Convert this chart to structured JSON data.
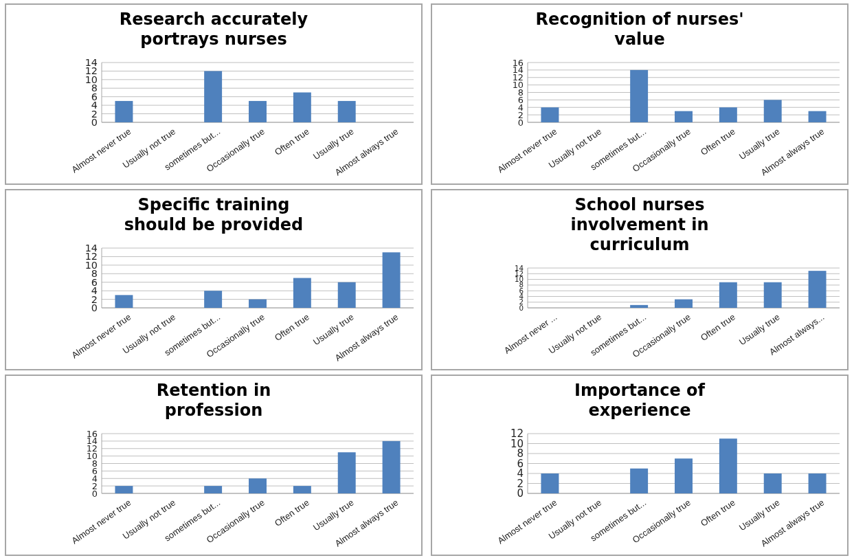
{
  "chart_data": [
    {
      "type": "bar",
      "title": "Research accurately portrays nurses",
      "categories": [
        "Almost never true",
        "Usually not true",
        "sometimes but...",
        "Occasionally true",
        "Often true",
        "Usually true",
        "Almost always true"
      ],
      "values": [
        5,
        0,
        12,
        5,
        7,
        5,
        0
      ],
      "color": "#4f81bd",
      "ylim": [
        0,
        14
      ],
      "yticks": [
        0,
        2,
        4,
        6,
        8,
        10,
        12,
        14
      ],
      "grid": "y"
    },
    {
      "type": "bar",
      "title": "Recognition of nurses' value",
      "categories": [
        "Almost never true",
        "Usually not true",
        "sometimes but...",
        "Occasionally true",
        "Often true",
        "Usually true",
        "Almost always true"
      ],
      "values": [
        4,
        0,
        14,
        3,
        4,
        6,
        3
      ],
      "color": "#4f81bd",
      "ylim": [
        0,
        16
      ],
      "yticks": [
        0,
        2,
        4,
        6,
        8,
        10,
        12,
        14,
        16
      ],
      "grid": "y"
    },
    {
      "type": "bar",
      "title": "Specific training should be provided",
      "categories": [
        "Almost never true",
        "Usually not true",
        "sometimes but...",
        "Occasionally true",
        "Often true",
        "Usually true",
        "Almost always true"
      ],
      "values": [
        3,
        0,
        4,
        2,
        7,
        6,
        13
      ],
      "color": "#4f81bd",
      "ylim": [
        0,
        14
      ],
      "yticks": [
        0,
        2,
        4,
        6,
        8,
        10,
        12,
        14
      ],
      "grid": "y"
    },
    {
      "type": "bar",
      "title": "School nurses involvement in curriculum",
      "categories": [
        "Almost never ...",
        "Usually not true",
        "sometimes but...",
        "Occasionally true",
        "Often true",
        "Usually true",
        "Almost always..."
      ],
      "values": [
        0,
        0,
        1,
        3,
        9,
        9,
        13
      ],
      "color": "#4f81bd",
      "ylim": [
        0,
        14
      ],
      "yticks": [
        0,
        2,
        4,
        6,
        8,
        10,
        12,
        14
      ],
      "grid": "y"
    },
    {
      "type": "bar",
      "title": "Retention in profession",
      "categories": [
        "Almost never true",
        "Usually not true",
        "sometimes but...",
        "Occasionally true",
        "Often true",
        "Usually true",
        "Almost always true"
      ],
      "values": [
        2,
        0,
        2,
        4,
        2,
        11,
        14
      ],
      "color": "#4f81bd",
      "ylim": [
        0,
        16
      ],
      "yticks": [
        0,
        2,
        4,
        6,
        8,
        10,
        12,
        14,
        16
      ],
      "grid": "y"
    },
    {
      "type": "bar",
      "title": "Importance of experience",
      "categories": [
        "Almost never true",
        "Usually not true",
        "sometimes but...",
        "Occasionally true",
        "Often true",
        "Usually true",
        "Almost always true"
      ],
      "values": [
        4,
        0,
        5,
        7,
        11,
        4,
        4
      ],
      "color": "#4f81bd",
      "ylim": [
        0,
        12
      ],
      "yticks": [
        0,
        2,
        4,
        6,
        8,
        10,
        12
      ],
      "grid": "y"
    }
  ]
}
